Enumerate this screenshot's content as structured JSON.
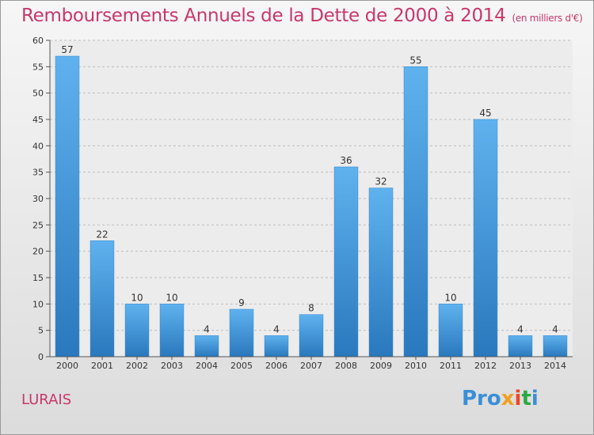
{
  "title": "Remboursements Annuels de la Dette de 2000 à 2014",
  "unit": "(en milliers d'€)",
  "commune": "LURAIS",
  "logo": {
    "text": "Proxiti"
  },
  "colors": {
    "bar": "#3f97dd",
    "bar_light": "#5fb2ee",
    "bar_dark": "#2a78bd",
    "title": "#c8376b",
    "grid": "#bdbdbd"
  },
  "chart_data": {
    "type": "bar",
    "categories": [
      "2000",
      "2001",
      "2002",
      "2003",
      "2004",
      "2005",
      "2006",
      "2007",
      "2008",
      "2009",
      "2010",
      "2011",
      "2012",
      "2013",
      "2014"
    ],
    "values": [
      57,
      22,
      10,
      10,
      4,
      9,
      4,
      8,
      36,
      32,
      55,
      10,
      45,
      4,
      4
    ],
    "ylim": [
      0,
      60
    ],
    "yticks": [
      0,
      5,
      10,
      15,
      20,
      25,
      30,
      35,
      40,
      45,
      50,
      55,
      60
    ],
    "grid": true,
    "data_labels": true
  }
}
